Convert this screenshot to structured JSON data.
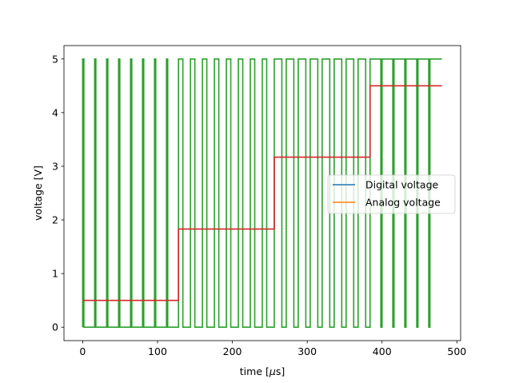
{
  "chart_data": {
    "type": "line",
    "xlabel_prefix": "time [",
    "xlabel_unit_symbol": "μ",
    "xlabel_suffix": "s]",
    "ylabel": "voltage [V]",
    "xlim": [
      -25,
      505
    ],
    "ylim": [
      -0.25,
      5.25
    ],
    "xticks": [
      0,
      100,
      200,
      300,
      400,
      500
    ],
    "xtick_labels": [
      "0",
      "100",
      "200",
      "300",
      "400",
      "500"
    ],
    "yticks": [
      0,
      1,
      2,
      3,
      4,
      5
    ],
    "ytick_labels": [
      "0",
      "1",
      "2",
      "3",
      "4",
      "5"
    ],
    "legend": {
      "placement": "center-right",
      "entries": [
        {
          "label": "Digital voltage",
          "color": "#1f77b4"
        },
        {
          "label": "Analog voltage",
          "color": "#ff7f0e"
        }
      ]
    },
    "pwm_signal": {
      "color": "#2ca02c",
      "period": 16,
      "high": 5,
      "low": 0,
      "t_end": 480,
      "segments": [
        {
          "t_start": 0,
          "t_end": 128,
          "duty": 0.1
        },
        {
          "t_start": 128,
          "t_end": 256,
          "duty": 0.3667
        },
        {
          "t_start": 256,
          "t_end": 384,
          "duty": 0.6333
        },
        {
          "t_start": 384,
          "t_end": 480,
          "duty": 0.9
        }
      ]
    },
    "average_signal": {
      "color": "#d62728",
      "steps": [
        {
          "t_start": 0,
          "t_end": 128,
          "value": 0.5
        },
        {
          "t_start": 128,
          "t_end": 256,
          "value": 1.83
        },
        {
          "t_start": 256,
          "t_end": 384,
          "value": 3.17
        },
        {
          "t_start": 384,
          "t_end": 480,
          "value": 4.5
        }
      ]
    }
  }
}
